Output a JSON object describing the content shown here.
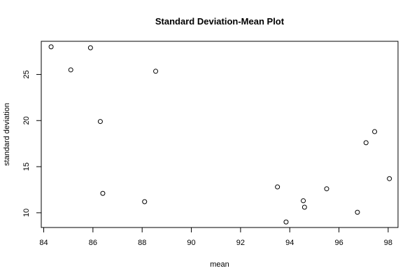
{
  "chart_data": {
    "type": "scatter",
    "title": "Standard Deviation-Mean Plot",
    "xlabel": "mean",
    "ylabel": "standard deviation",
    "xlim": [
      83.9,
      98.4
    ],
    "ylim": [
      8.4,
      28.6
    ],
    "x_ticks": [
      84,
      86,
      88,
      90,
      92,
      94,
      96,
      98
    ],
    "x_tick_labels": [
      "84",
      "86",
      "88",
      "90",
      "92",
      "94",
      "96",
      "98"
    ],
    "y_ticks": [
      10,
      15,
      20,
      25
    ],
    "y_tick_labels": [
      "10",
      "15",
      "20",
      "25"
    ],
    "grid": false,
    "legend": "none",
    "points": [
      {
        "x": 84.3,
        "y": 28.0
      },
      {
        "x": 85.1,
        "y": 25.5
      },
      {
        "x": 85.9,
        "y": 27.9
      },
      {
        "x": 86.3,
        "y": 19.9
      },
      {
        "x": 86.4,
        "y": 12.1
      },
      {
        "x": 88.1,
        "y": 11.2
      },
      {
        "x": 88.55,
        "y": 25.35
      },
      {
        "x": 93.5,
        "y": 12.8
      },
      {
        "x": 93.85,
        "y": 9.0
      },
      {
        "x": 94.55,
        "y": 11.3
      },
      {
        "x": 94.6,
        "y": 10.6
      },
      {
        "x": 95.5,
        "y": 12.6
      },
      {
        "x": 96.75,
        "y": 10.05
      },
      {
        "x": 97.1,
        "y": 17.6
      },
      {
        "x": 97.45,
        "y": 18.8
      },
      {
        "x": 98.05,
        "y": 13.7
      }
    ]
  }
}
